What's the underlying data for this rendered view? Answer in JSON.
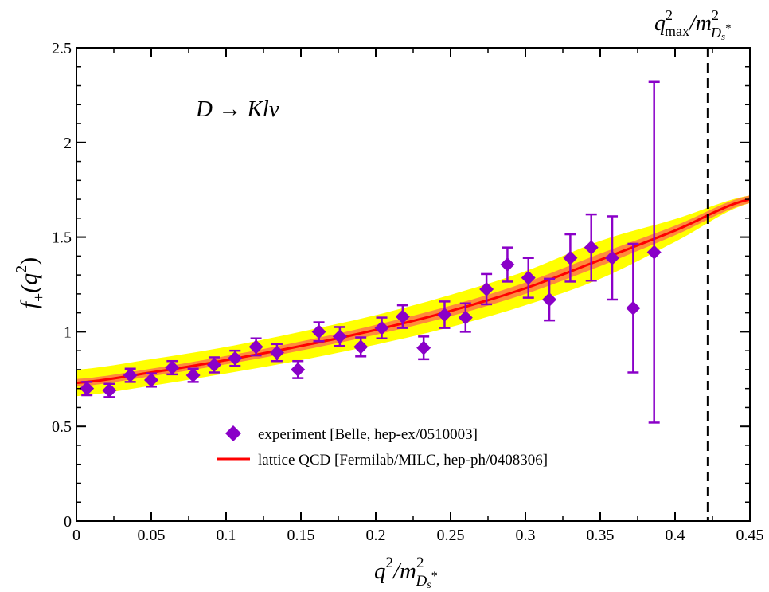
{
  "chart_data": {
    "type": "scatter",
    "xlim": [
      0,
      0.45
    ],
    "ylim": [
      0,
      2.5
    ],
    "x_ticks": [
      "0",
      "0.05",
      "0.1",
      "0.15",
      "0.2",
      "0.25",
      "0.3",
      "0.35",
      "0.4",
      "0.45"
    ],
    "y_ticks": [
      "0",
      "0.5",
      "1",
      "1.5",
      "2",
      "2.5"
    ],
    "grid": false,
    "legend_position": "bottom-center",
    "annotation": "D → Klν",
    "xlabel": {
      "base": "q",
      "sup": "2",
      "slash": "/m",
      "sub": "D",
      "subsub": "s",
      "star": "*",
      "msup": "2"
    },
    "ylabel": {
      "f": "f",
      "sub": "+",
      "arg": "(q",
      "sup": "2",
      "close": ")"
    },
    "vline": {
      "x": 0.422,
      "style": "dashed",
      "label": {
        "base": "q",
        "sup": "2",
        "subscript": "max",
        "slash": "/m",
        "msup": "2",
        "sub": "D",
        "subsub": "s",
        "star": "*"
      }
    },
    "series": [
      {
        "name": "experiment [Belle, hep-ex/0510003]",
        "kind": "points_with_errorbars",
        "marker": "diamond",
        "color": "#8a00c8",
        "points": [
          {
            "x": 0.007,
            "y": 0.7,
            "err": 0.035
          },
          {
            "x": 0.022,
            "y": 0.69,
            "err": 0.035
          },
          {
            "x": 0.036,
            "y": 0.77,
            "err": 0.035
          },
          {
            "x": 0.05,
            "y": 0.745,
            "err": 0.035
          },
          {
            "x": 0.064,
            "y": 0.81,
            "err": 0.035
          },
          {
            "x": 0.078,
            "y": 0.77,
            "err": 0.035
          },
          {
            "x": 0.092,
            "y": 0.825,
            "err": 0.04
          },
          {
            "x": 0.106,
            "y": 0.86,
            "err": 0.04
          },
          {
            "x": 0.12,
            "y": 0.92,
            "err": 0.045
          },
          {
            "x": 0.134,
            "y": 0.89,
            "err": 0.045
          },
          {
            "x": 0.148,
            "y": 0.8,
            "err": 0.045
          },
          {
            "x": 0.162,
            "y": 1.0,
            "err": 0.05
          },
          {
            "x": 0.176,
            "y": 0.975,
            "err": 0.05
          },
          {
            "x": 0.19,
            "y": 0.92,
            "err": 0.05
          },
          {
            "x": 0.204,
            "y": 1.02,
            "err": 0.055
          },
          {
            "x": 0.218,
            "y": 1.08,
            "err": 0.06
          },
          {
            "x": 0.232,
            "y": 0.915,
            "err": 0.06
          },
          {
            "x": 0.246,
            "y": 1.09,
            "err": 0.07
          },
          {
            "x": 0.26,
            "y": 1.075,
            "err": 0.075
          },
          {
            "x": 0.274,
            "y": 1.225,
            "err": 0.08
          },
          {
            "x": 0.288,
            "y": 1.355,
            "err": 0.09
          },
          {
            "x": 0.302,
            "y": 1.285,
            "err": 0.105
          },
          {
            "x": 0.316,
            "y": 1.17,
            "err": 0.11
          },
          {
            "x": 0.33,
            "y": 1.39,
            "err": 0.125
          },
          {
            "x": 0.344,
            "y": 1.445,
            "err": 0.175
          },
          {
            "x": 0.358,
            "y": 1.39,
            "err": 0.22
          },
          {
            "x": 0.372,
            "y": 1.125,
            "err": 0.34
          },
          {
            "x": 0.386,
            "y": 1.42,
            "err": 0.9
          }
        ]
      },
      {
        "name": "lattice QCD [Fermilab/MILC, hep-ph/0408306]",
        "kind": "line_with_band",
        "color": "#ff0000",
        "inner_band_color": "#ff8a3c",
        "outer_band_color": "#ffff00",
        "x": [
          0,
          0.05,
          0.1,
          0.15,
          0.2,
          0.25,
          0.3,
          0.35,
          0.4,
          0.45
        ],
        "y": [
          0.73,
          0.785,
          0.85,
          0.925,
          1.01,
          1.11,
          1.23,
          1.38,
          1.535,
          1.7
        ],
        "inner_half_width": [
          0.02,
          0.02,
          0.022,
          0.024,
          0.026,
          0.028,
          0.03,
          0.033,
          0.025,
          0.02
        ],
        "outer_half_width": [
          0.07,
          0.07,
          0.07,
          0.075,
          0.078,
          0.085,
          0.09,
          0.1,
          0.06,
          0.02
        ]
      }
    ]
  }
}
